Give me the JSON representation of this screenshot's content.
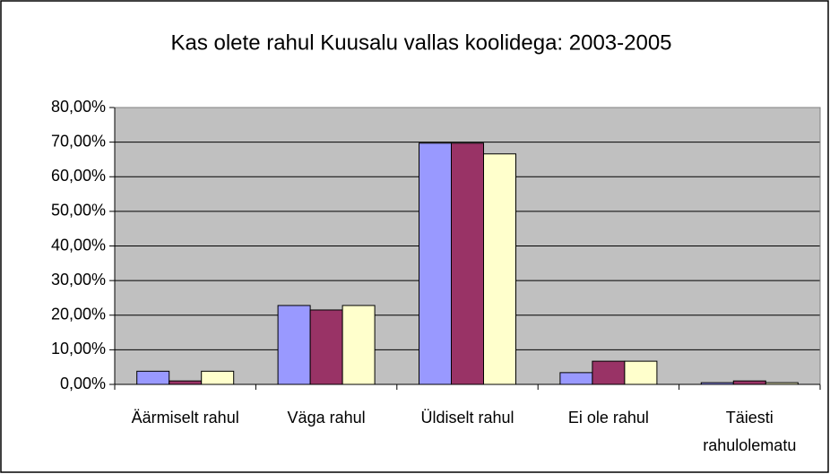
{
  "chart_data": {
    "type": "bar",
    "title": "Kas olete rahul Kuusalu vallas koolidega: 2003-2005",
    "categories": [
      "Äärmiselt rahul",
      "Väga rahul",
      "Üldiselt rahul",
      "Ei ole rahul",
      "Täiesti rahulolematu"
    ],
    "series": [
      {
        "color": "#9999ff",
        "values": [
          3.8,
          22.8,
          69.7,
          3.4,
          0.5
        ]
      },
      {
        "color": "#993366",
        "values": [
          1.0,
          21.5,
          69.7,
          6.7,
          1.0
        ]
      },
      {
        "color": "#ffffcc",
        "values": [
          3.8,
          22.8,
          66.6,
          6.7,
          0.5
        ]
      }
    ],
    "ylim": [
      0,
      80
    ],
    "yticks": [
      {
        "value": 0,
        "label": "0,00%"
      },
      {
        "value": 10,
        "label": "10,00%"
      },
      {
        "value": 20,
        "label": "20,00%"
      },
      {
        "value": 30,
        "label": "30,00%"
      },
      {
        "value": 40,
        "label": "40,00%"
      },
      {
        "value": 50,
        "label": "50,00%"
      },
      {
        "value": 60,
        "label": "60,00%"
      },
      {
        "value": 70,
        "label": "70,00%"
      },
      {
        "value": 80,
        "label": "80,00%"
      }
    ],
    "grid": true,
    "plot_background": "#c0c0c0"
  }
}
